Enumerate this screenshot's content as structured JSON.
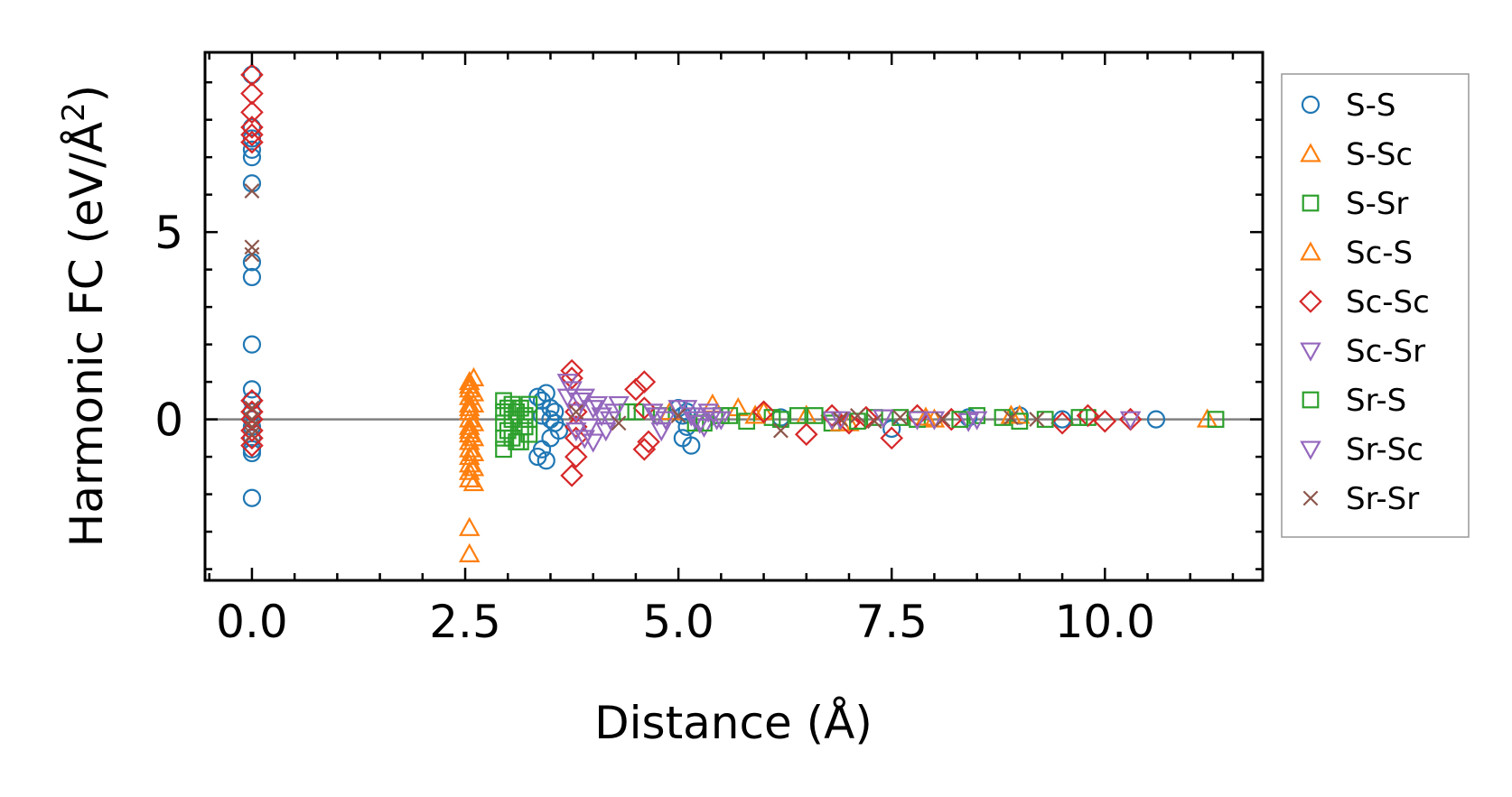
{
  "chart_data": {
    "type": "scatter",
    "title": "",
    "xlabel": "Distance (Å)",
    "ylabel": "Harmonic FC (eV/Å²)",
    "ylabel_main": "Harmonic FC (eV/Å",
    "ylabel_sup": "2",
    "ylabel_close": ")",
    "xlim": [
      -0.55,
      11.85
    ],
    "ylim": [
      -4.3,
      9.8
    ],
    "xticks": [
      0.0,
      2.5,
      5.0,
      7.5,
      10.0
    ],
    "xtick_labels": [
      "0.0",
      "2.5",
      "5.0",
      "7.5",
      "10.0"
    ],
    "yticks": [
      0,
      5
    ],
    "ytick_labels": [
      "0",
      "5"
    ],
    "x_minor_step": 0.5,
    "y_minor_step": 1,
    "hline_y": 0,
    "legend_position": "right, outside plot",
    "series": [
      {
        "name": "S-S",
        "marker": "circle",
        "color": "#1f77b4",
        "x": [
          0,
          0,
          0,
          0,
          0,
          0,
          0,
          0,
          0,
          0,
          0,
          0,
          0,
          0,
          0,
          0,
          0,
          0,
          3.35,
          3.35,
          3.4,
          3.4,
          3.45,
          3.45,
          3.5,
          3.5,
          3.55,
          3.6,
          3.4,
          3.5,
          3.55,
          5.0,
          5.05,
          5.1,
          5.15,
          5.05,
          5.1,
          6.2,
          7.5,
          8.4,
          9.0,
          9.5,
          10.6
        ],
        "y": [
          9.2,
          7.8,
          7.5,
          7.2,
          7.0,
          6.3,
          4.2,
          3.8,
          2.0,
          0.8,
          0.5,
          0.2,
          0,
          -0.2,
          -0.5,
          -0.8,
          -0.9,
          -2.1,
          0.6,
          -1.0,
          0.5,
          -0.8,
          0.7,
          -1.1,
          0.3,
          -0.5,
          0.2,
          -0.3,
          0.1,
          0.0,
          -0.1,
          0.3,
          -0.5,
          0.2,
          -0.7,
          0.1,
          -0.2,
          0.05,
          -0.25,
          0.05,
          0.1,
          0.0,
          0.0
        ]
      },
      {
        "name": "S-Sc",
        "marker": "triangle-up",
        "color": "#ff7f0e",
        "x": [
          2.55,
          2.55,
          2.55,
          2.55,
          2.55,
          2.55,
          2.55,
          2.55,
          2.55,
          2.55,
          2.55,
          2.55,
          2.55,
          2.55,
          2.55,
          2.55,
          2.55,
          2.55,
          2.55,
          5.4,
          5.7,
          6.0,
          6.5,
          7.0,
          8.0,
          9.0,
          11.2
        ],
        "y": [
          1.0,
          0.8,
          0.6,
          0.4,
          0.2,
          0.0,
          -0.2,
          -0.4,
          -0.6,
          -0.8,
          -1.0,
          -1.2,
          -1.4,
          -1.6,
          0.9,
          0.3,
          -0.3,
          -2.9,
          -3.6,
          0.4,
          0.3,
          0.2,
          0.1,
          -0.1,
          0.0,
          0.1,
          0.0
        ]
      },
      {
        "name": "S-Sr",
        "marker": "square",
        "color": "#2ca02c",
        "x": [
          2.95,
          2.95,
          2.95,
          2.95,
          2.95,
          3.05,
          3.05,
          3.05,
          3.15,
          3.15,
          3.15,
          3.25,
          3.25,
          3.25,
          4.5,
          4.8,
          5.2,
          5.5,
          5.8,
          6.1,
          6.4,
          6.8,
          7.3,
          7.8,
          8.5,
          9.0,
          9.8,
          11.3
        ],
        "y": [
          0.5,
          0.2,
          -0.1,
          -0.5,
          -0.8,
          0.4,
          0.0,
          -0.5,
          0.3,
          -0.2,
          -0.6,
          0.4,
          0.0,
          -0.4,
          0.2,
          0.1,
          -0.1,
          0.1,
          -0.05,
          0.05,
          0.1,
          -0.1,
          0.05,
          0.0,
          0.1,
          -0.05,
          0.05,
          0.0
        ]
      },
      {
        "name": "Sc-S",
        "marker": "triangle-up",
        "color": "#ff7f0e",
        "x": [
          2.6,
          2.6,
          2.6,
          2.6,
          2.6,
          2.6,
          2.6,
          2.6,
          4.9,
          5.9,
          6.9,
          7.9,
          8.9
        ],
        "y": [
          1.1,
          0.7,
          0.4,
          -0.1,
          -0.5,
          -0.9,
          -1.3,
          -1.7,
          0.2,
          0.1,
          -0.1,
          0.05,
          0.1
        ]
      },
      {
        "name": "Sc-Sc",
        "marker": "diamond",
        "color": "#d62728",
        "x": [
          0,
          0,
          0,
          0,
          0,
          0,
          0,
          0,
          0,
          0,
          0,
          0,
          3.75,
          3.75,
          3.8,
          3.8,
          3.8,
          3.75,
          3.8,
          4.5,
          4.6,
          4.6,
          4.65,
          4.6,
          6.0,
          6.5,
          6.8,
          7.0,
          7.2,
          7.5,
          7.8,
          8.2,
          9.5,
          9.8,
          10.0,
          10.3
        ],
        "y": [
          9.2,
          8.7,
          8.2,
          7.8,
          7.6,
          7.4,
          0.5,
          0.2,
          0,
          -0.3,
          -0.5,
          -0.7,
          1.3,
          1.1,
          0.2,
          -0.5,
          -1.0,
          -1.5,
          -0.2,
          0.8,
          1.0,
          -0.8,
          -0.6,
          0.3,
          0.2,
          -0.4,
          0.1,
          -0.1,
          0.05,
          -0.5,
          0.1,
          0.0,
          -0.1,
          0.1,
          -0.05,
          0.0
        ]
      },
      {
        "name": "Sc-Sr",
        "marker": "triangle-down",
        "color": "#9467bd",
        "x": [
          3.7,
          3.7,
          3.8,
          3.8,
          3.9,
          3.9,
          4.0,
          4.0,
          4.1,
          4.2,
          4.3,
          4.7,
          4.8,
          5.1,
          5.2,
          5.3,
          5.4,
          5.5,
          6.8,
          7.8,
          8.4,
          10.3
        ],
        "y": [
          1.0,
          0.6,
          0.2,
          -0.3,
          0.6,
          -0.5,
          0.3,
          -0.6,
          0.1,
          0.0,
          0.4,
          0.2,
          -0.3,
          0.3,
          0.0,
          -0.2,
          0.1,
          0.0,
          0.0,
          0.0,
          -0.05,
          0.0
        ]
      },
      {
        "name": "Sr-S",
        "marker": "square",
        "color": "#2ca02c",
        "x": [
          3.0,
          3.0,
          3.1,
          3.1,
          3.2,
          3.2,
          4.4,
          5.3,
          5.6,
          6.2,
          6.6,
          7.1,
          7.6,
          8.3,
          8.8,
          9.3,
          9.7
        ],
        "y": [
          0.3,
          -0.3,
          0.2,
          -0.6,
          0.1,
          -0.2,
          0.2,
          -0.1,
          0.1,
          0.0,
          0.1,
          -0.05,
          0.05,
          0.0,
          0.05,
          0.0,
          0.05
        ]
      },
      {
        "name": "Sr-Sc",
        "marker": "triangle-down",
        "color": "#9467bd",
        "x": [
          3.75,
          3.85,
          3.95,
          4.05,
          4.15,
          4.25,
          4.75,
          4.85,
          5.0,
          5.15,
          5.25,
          5.35,
          5.45,
          6.9,
          7.4,
          8.0,
          8.5
        ],
        "y": [
          0.8,
          0.5,
          -0.2,
          0.4,
          -0.3,
          0.2,
          0.1,
          0.0,
          0.3,
          0.1,
          -0.1,
          0.2,
          0.0,
          0.0,
          0.05,
          0.0,
          0.0
        ]
      },
      {
        "name": "Sr-Sr",
        "marker": "x",
        "color": "#8c564b",
        "x": [
          0,
          0,
          0,
          0,
          0,
          0,
          0,
          3.8,
          4.3,
          5.0,
          6.2,
          6.9,
          7.1,
          7.3,
          7.6,
          8.1,
          8.9,
          9.2
        ],
        "y": [
          6.1,
          4.6,
          4.4,
          0.3,
          0.0,
          -0.2,
          -0.4,
          0.2,
          -0.1,
          0.1,
          -0.3,
          0.0,
          0.1,
          -0.05,
          0.05,
          0.0,
          0.05,
          0.0
        ]
      }
    ]
  }
}
